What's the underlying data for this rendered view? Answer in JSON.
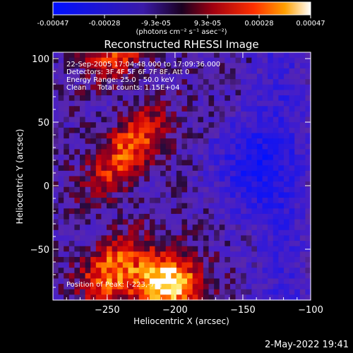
{
  "chart_data": {
    "type": "heatmap",
    "title": "Reconstructed RHESSI Image",
    "xlabel": "Heliocentric X (arcsec)",
    "ylabel": "Heliocentric Y (arcsec)",
    "xlim": [
      -290,
      -100
    ],
    "ylim": [
      -90,
      105
    ],
    "xticks": [
      -250,
      -200,
      -150,
      -100
    ],
    "yticks": [
      -50,
      0,
      50,
      100
    ],
    "colorbar": {
      "ticks": [
        "-0.00047",
        "-0.00028",
        "-9.3e-05",
        "9.3e-05",
        "0.00028",
        "0.00047"
      ],
      "min": -0.00047,
      "max": 0.00047,
      "units": "(photons cm⁻² s⁻¹ asec⁻²)"
    },
    "info_lines": [
      "22-Sep-2005 17:04:48.000 to 17:09:36.000",
      "Detectors: 3F 4F 5F 6F 7F 8F, Att 0",
      "Energy Range: 25.0 - 50.0 keV",
      "Clean     Total counts: 1.15E+04"
    ],
    "peak_text": "Position of Peak: [-223,-77]",
    "peak": [
      -223,
      -77
    ]
  },
  "timestamp": "2-May-2022 19:41"
}
